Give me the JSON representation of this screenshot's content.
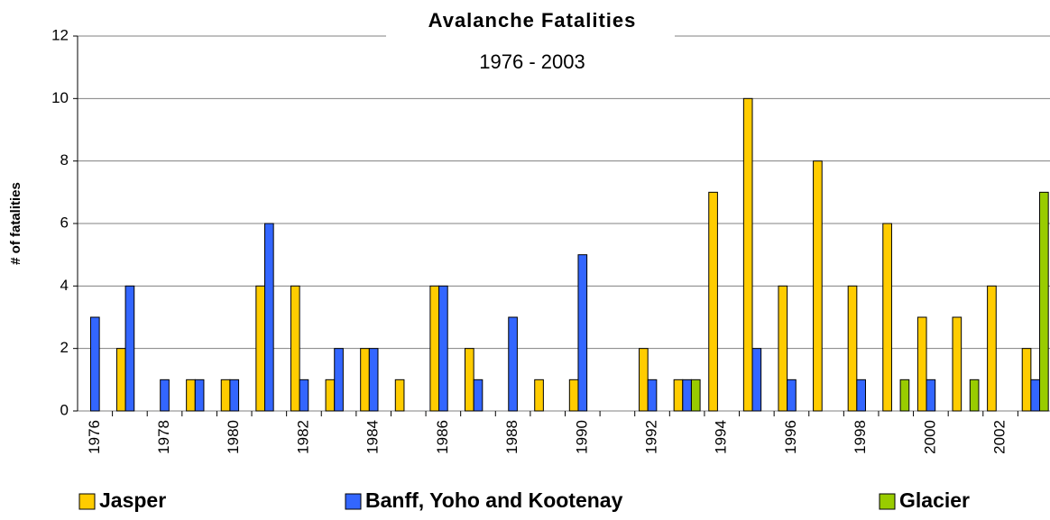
{
  "chart_data": {
    "type": "bar",
    "title": "Avalanche Fatalities",
    "subtitle": "1976 - 2003",
    "y_label": "# of fatalities",
    "categories": [
      "1976",
      null,
      "1978",
      null,
      "1980",
      null,
      "1982",
      null,
      "1984",
      null,
      "1986",
      null,
      "1988",
      null,
      "1990",
      null,
      "1992",
      null,
      "1994",
      null,
      "1996",
      null,
      "1998",
      null,
      "2000",
      null,
      "2002",
      null
    ],
    "series": [
      {
        "name": "Jasper",
        "color": "#ffcc00",
        "values": [
          0,
          2,
          0,
          1,
          1,
          4,
          4,
          1,
          2,
          1,
          4,
          2,
          0,
          1,
          1,
          0,
          2,
          1,
          7,
          10,
          4,
          8,
          4,
          6,
          3,
          3,
          4,
          2
        ]
      },
      {
        "name": "Banff, Yoho and Kootenay",
        "color": "#3366ff",
        "values": [
          3,
          4,
          1,
          1,
          1,
          6,
          1,
          2,
          2,
          0,
          4,
          1,
          3,
          0,
          5,
          0,
          1,
          1,
          0,
          2,
          1,
          0,
          1,
          0,
          1,
          0,
          0,
          1
        ]
      },
      {
        "name": "Glacier",
        "color": "#99cc00",
        "values": [
          0,
          0,
          0,
          0,
          0,
          0,
          0,
          0,
          0,
          0,
          0,
          0,
          0,
          0,
          0,
          0,
          0,
          1,
          0,
          0,
          0,
          0,
          0,
          1,
          0,
          1,
          0,
          7
        ]
      }
    ],
    "ylim": [
      0,
      12
    ],
    "yticks": [
      0,
      2,
      4,
      6,
      8,
      10,
      12
    ],
    "grid": true,
    "legend": "bottom"
  }
}
